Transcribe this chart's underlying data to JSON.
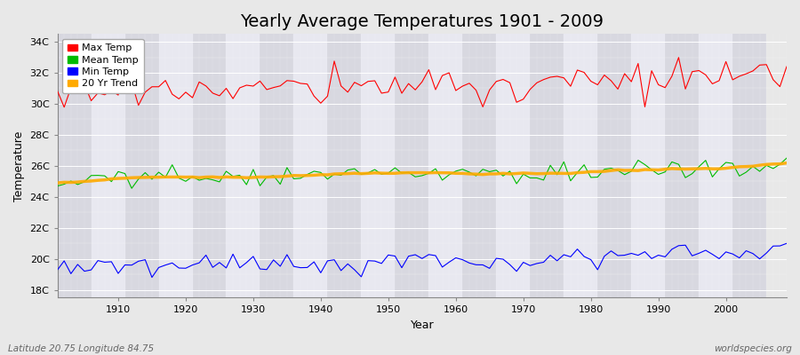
{
  "title": "Yearly Average Temperatures 1901 - 2009",
  "xlabel": "Year",
  "ylabel": "Temperature",
  "legend_labels": [
    "Max Temp",
    "Mean Temp",
    "Min Temp",
    "20 Yr Trend"
  ],
  "legend_colors": [
    "#ff0000",
    "#00bb00",
    "#0000ff",
    "#ffaa00"
  ],
  "line_colors": {
    "max": "#ff0000",
    "mean": "#00bb00",
    "min": "#0000ff",
    "trend": "#ffaa00"
  },
  "ytick_labels": [
    "18C",
    "20C",
    "22C",
    "24C",
    "26C",
    "28C",
    "30C",
    "32C",
    "34C"
  ],
  "ytick_values": [
    18,
    20,
    22,
    24,
    26,
    28,
    30,
    32,
    34
  ],
  "ylim": [
    17.5,
    34.5
  ],
  "xlim": [
    1901,
    2009
  ],
  "bg_light": "#e8e8f0",
  "bg_dark": "#d8d8e8",
  "plot_bg": "#e0e0ea",
  "grid_color": "#ffffff",
  "footer_left": "Latitude 20.75 Longitude 84.75",
  "footer_right": "worldspecies.org",
  "title_fontsize": 14,
  "axis_label_fontsize": 9,
  "tick_fontsize": 8,
  "footer_fontsize": 7.5,
  "legend_fontsize": 8
}
